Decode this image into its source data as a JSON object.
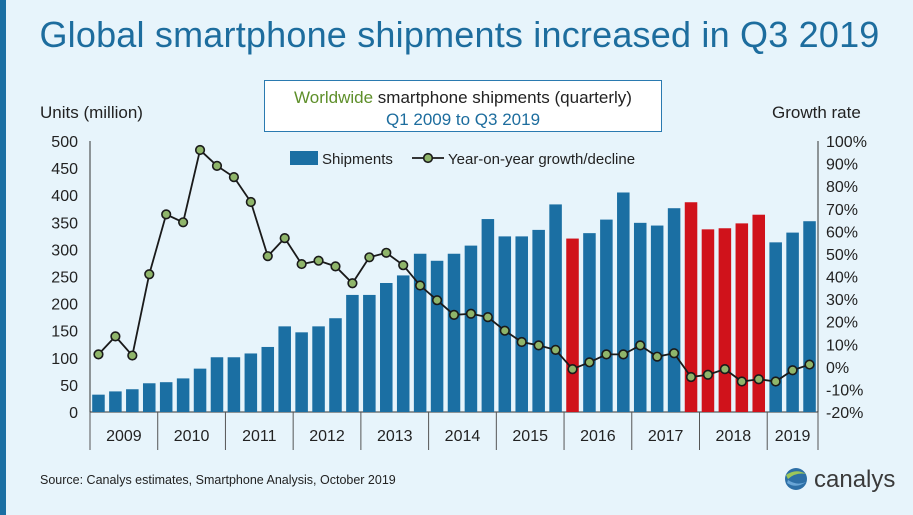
{
  "page": {
    "title": "Global smartphone shipments increased in Q3 2019",
    "subtitle_highlight": "Worldwide",
    "subtitle_rest": " smartphone shipments (quarterly)",
    "subtitle_line2": "Q1 2009 to Q3 2019",
    "source": "Source: Canalys estimates, Smartphone Analysis, October 2019",
    "logo": "canalys"
  },
  "chart_data": {
    "type": "bar",
    "ylabel": "Units (million)",
    "y2label": "Growth rate",
    "ylim": [
      0,
      500
    ],
    "yticks": [
      0,
      50,
      100,
      150,
      200,
      250,
      300,
      350,
      400,
      450,
      500
    ],
    "y2lim": [
      -20,
      100
    ],
    "y2ticks": [
      "-20%",
      "-10%",
      "0%",
      "10%",
      "20%",
      "30%",
      "40%",
      "50%",
      "60%",
      "70%",
      "80%",
      "90%",
      "100%"
    ],
    "legend": [
      "Shipments",
      "Year-on-year growth/decline"
    ],
    "legend_position": "top-center",
    "colors": {
      "shipments": "#1b6fa3",
      "highlight": "#d0121b",
      "growth_line": "#1a1a1a",
      "growth_marker": "#8fb56a"
    },
    "years": [
      "2009",
      "2010",
      "2011",
      "2012",
      "2013",
      "2014",
      "2015",
      "2016",
      "2017",
      "2018",
      "2019"
    ],
    "quarters": [
      "Q1 2009",
      "Q2 2009",
      "Q3 2009",
      "Q4 2009",
      "Q1 2010",
      "Q2 2010",
      "Q3 2010",
      "Q4 2010",
      "Q1 2011",
      "Q2 2011",
      "Q3 2011",
      "Q4 2011",
      "Q1 2012",
      "Q2 2012",
      "Q3 2012",
      "Q4 2012",
      "Q1 2013",
      "Q2 2013",
      "Q3 2013",
      "Q4 2013",
      "Q1 2014",
      "Q2 2014",
      "Q3 2014",
      "Q4 2014",
      "Q1 2015",
      "Q2 2015",
      "Q3 2015",
      "Q4 2015",
      "Q1 2016",
      "Q2 2016",
      "Q3 2016",
      "Q4 2016",
      "Q1 2017",
      "Q2 2017",
      "Q3 2017",
      "Q4 2017",
      "Q1 2018",
      "Q2 2018",
      "Q3 2018",
      "Q4 2018",
      "Q1 2019",
      "Q2 2019",
      "Q3 2019"
    ],
    "shipments": [
      32,
      38,
      42,
      53,
      55,
      62,
      80,
      101,
      101,
      108,
      120,
      158,
      147,
      158,
      173,
      216,
      216,
      238,
      252,
      292,
      279,
      292,
      307,
      356,
      324,
      324,
      336,
      383,
      320,
      330,
      355,
      405,
      349,
      344,
      376,
      387,
      337,
      339,
      348,
      364,
      313,
      331,
      352
    ],
    "highlighted": [
      false,
      false,
      false,
      false,
      false,
      false,
      false,
      false,
      false,
      false,
      false,
      false,
      false,
      false,
      false,
      false,
      false,
      false,
      false,
      false,
      false,
      false,
      false,
      false,
      false,
      false,
      false,
      false,
      true,
      false,
      false,
      false,
      false,
      false,
      false,
      true,
      true,
      true,
      true,
      true,
      false,
      false,
      false
    ],
    "growth_pct": [
      5.5,
      13.5,
      5,
      41,
      67.5,
      64,
      96,
      89,
      84,
      73,
      49,
      57,
      45.5,
      47,
      44.5,
      37,
      48.5,
      50.5,
      45,
      36,
      29.5,
      23,
      23.5,
      22,
      16,
      11,
      9.5,
      7.5,
      -1,
      2,
      5.5,
      5.5,
      9.5,
      4.5,
      6,
      -4.5,
      -3.5,
      -1,
      -6.5,
      -5.5,
      -6.5,
      -1.5,
      1
    ]
  }
}
